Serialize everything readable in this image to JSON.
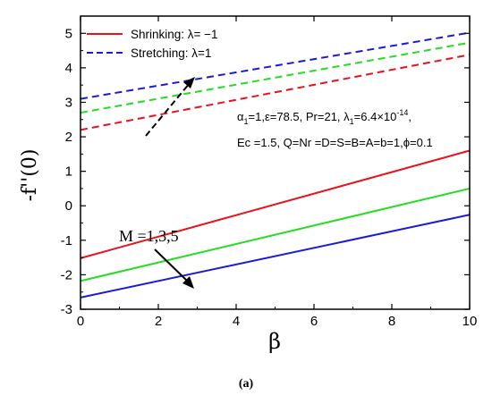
{
  "chart_data": {
    "type": "line",
    "xlabel": "β",
    "ylabel": "-f''(0)",
    "xlim": [
      0,
      10
    ],
    "ylim": [
      -3,
      5.5
    ],
    "xticks": [
      0,
      2,
      4,
      6,
      8,
      10
    ],
    "yticks": [
      -3,
      -2,
      -1,
      0,
      1,
      2,
      3,
      4,
      5
    ],
    "legend": {
      "placement": "top-left",
      "entries": [
        {
          "label": "Shrinking: λ= −1",
          "color": "#e8121a",
          "style": "solid"
        },
        {
          "label": "Stretching: λ=1",
          "color": "#1a1ad8",
          "style": "dashed"
        }
      ]
    },
    "series": [
      {
        "color": "#1a1ad8",
        "style": "dashed",
        "x": [
          0,
          10
        ],
        "y": [
          3.1,
          5.02
        ]
      },
      {
        "color": "#22dd22",
        "style": "dashed",
        "x": [
          0,
          10
        ],
        "y": [
          2.7,
          4.73
        ]
      },
      {
        "color": "#e8121a",
        "style": "dashed",
        "x": [
          0,
          10
        ],
        "y": [
          2.2,
          4.38
        ]
      },
      {
        "color": "#e8121a",
        "style": "solid",
        "x": [
          0,
          10
        ],
        "y": [
          -1.52,
          1.6
        ]
      },
      {
        "color": "#22dd22",
        "style": "solid",
        "x": [
          0,
          10
        ],
        "y": [
          -2.18,
          0.5
        ]
      },
      {
        "color": "#1a1ad8",
        "style": "solid",
        "x": [
          0,
          10
        ],
        "y": [
          -2.66,
          -0.26
        ]
      }
    ],
    "annotations": {
      "params_line1": {
        "a": "α",
        "a_sub": "1",
        "b": "=1,ε=78.5, Pr=21, λ",
        "b_sub": "1",
        "c": "=6.4×10",
        "c_sup": "-14",
        "d": ","
      },
      "params_line2": "Ec =1.5, Q=Nr =D=S=B=A=b=1,ϕ=0.1",
      "m_label": "M =1,3,5"
    }
  },
  "caption": "(a)"
}
